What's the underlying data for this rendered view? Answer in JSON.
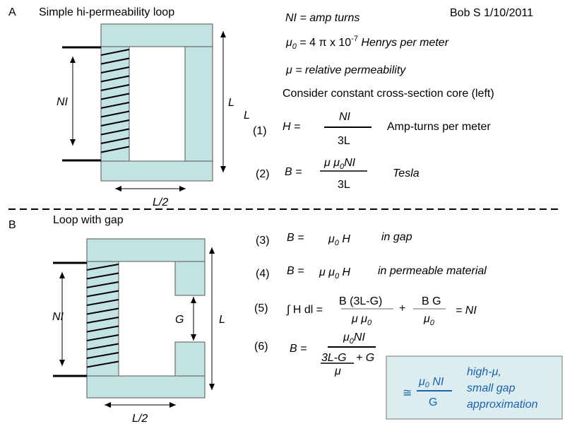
{
  "sectionA": {
    "letter": "A",
    "title": "Simple hi-permeability loop",
    "coil_label": "NI",
    "height_label": "L",
    "stray_label": "L",
    "width_label": "L/2"
  },
  "sectionB": {
    "letter": "B",
    "title": "Loop with gap",
    "coil_label": "NI",
    "gap_label": "G",
    "height_label": "L",
    "width_label": "L/2"
  },
  "author": "Bob S 1/10/2011",
  "definitions": {
    "ni": "NI = amp turns",
    "mu0_sym": "μ",
    "mu0_sub": "0",
    "mu0_rest": " = 4 π x 10",
    "mu0_exp": "-7",
    "mu0_units": " Henrys per meter",
    "mu": "μ = relative permeability",
    "consider": "Consider constant cross-section core (left)"
  },
  "equations": {
    "eq1": {
      "num": "(1)",
      "lhs": "H =",
      "numerator": "NI",
      "denominator": "3L",
      "note": "Amp-turns per meter"
    },
    "eq2": {
      "num": "(2)",
      "lhs": "B =",
      "numerator_a": "μ μ",
      "numerator_sub": "0",
      "numerator_b": "NI",
      "denominator": "3L",
      "note": "Tesla"
    },
    "eq3": {
      "num": "(3)",
      "lhs": "B =",
      "rhs_a": "μ",
      "rhs_sub": "0",
      "rhs_b": " H",
      "note": "in gap"
    },
    "eq4": {
      "num": "(4)",
      "lhs": "B =",
      "rhs_a": "μ μ",
      "rhs_sub": "0",
      "rhs_b": " H",
      "note": "in permeable material"
    },
    "eq5": {
      "num": "(5)",
      "lhs": "∫ H dl =",
      "frac1_num": "B (3L-G)",
      "frac1_den_a": "μ  μ",
      "frac1_den_sub": "0",
      "plus": "+",
      "frac2_num": "B G",
      "frac2_den_a": "μ",
      "frac2_den_sub": "0",
      "result": "= NI"
    },
    "eq6": {
      "num": "(6)",
      "lhs": "B =",
      "numerator_a": "μ",
      "numerator_sub": "0",
      "numerator_b": "NI",
      "den_inner_num": "3L-G",
      "den_plus": "+ G",
      "den_inner_den": "μ"
    }
  },
  "approximation": {
    "symbol": "≅",
    "numerator_a": "μ",
    "numerator_sub": "0",
    "numerator_b": " NI",
    "denominator": "G",
    "line1": "high-μ,",
    "line2": "small gap",
    "line3": "approximation"
  },
  "colors": {
    "core": "#c3e2e2",
    "box": "#dcedef",
    "accent": "#1a5fb4"
  }
}
